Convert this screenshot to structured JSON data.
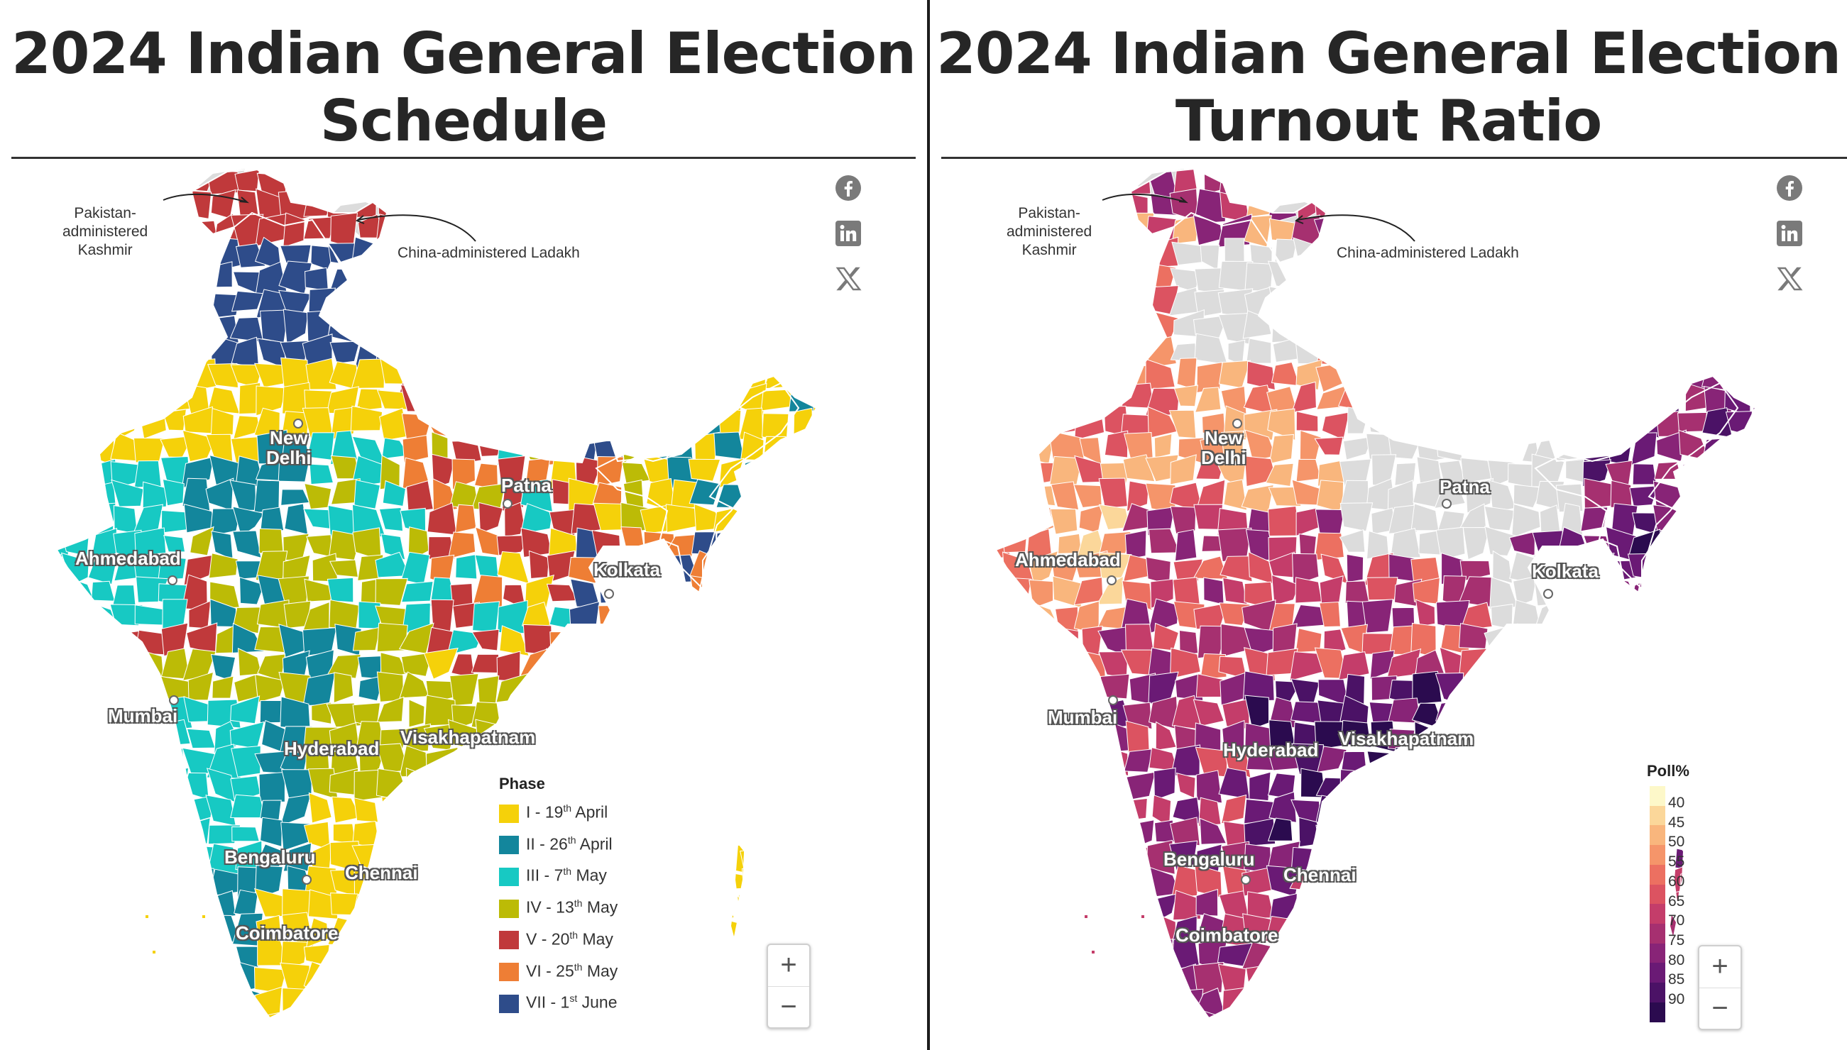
{
  "colors": {
    "phase": [
      "#f5d10a",
      "#13869c",
      "#17c9c3",
      "#bcbb06",
      "#c0393b",
      "#ee7e35",
      "#2e4c8a"
    ],
    "poll": [
      "#fdf8c9",
      "#fbd79a",
      "#f9b67d",
      "#f5956a",
      "#ec7061",
      "#dc5361",
      "#c43d6a",
      "#a63070",
      "#882477",
      "#6a1a75",
      "#4b1266",
      "#2b0b4f"
    ],
    "pak_china": "#dcdcdc"
  },
  "left": {
    "title_line1": "2024 Indian General Election",
    "title_line2": "Schedule",
    "annot_pak": [
      "Pakistan-",
      "administered",
      "Kashmir"
    ],
    "annot_china": "China-administered Ladakh",
    "cities": [
      "New",
      "Delhi",
      "Patna",
      "Ahmedabad",
      "Kolkata",
      "Mumbai",
      "Hyderabad",
      "Visakhapatnam",
      "Bengaluru",
      "Chennai",
      "Coimbatore"
    ],
    "legend_title": "Phase",
    "phases": [
      {
        "num": "I - 19",
        "sup": "th",
        "tail": " April"
      },
      {
        "num": "II - 26",
        "sup": "th",
        "tail": " April"
      },
      {
        "num": "III - 7",
        "sup": "th",
        "tail": " May"
      },
      {
        "num": "IV - 13",
        "sup": "th",
        "tail": " May"
      },
      {
        "num": "V - 20",
        "sup": "th",
        "tail": " May"
      },
      {
        "num": "VI - 25",
        "sup": "th",
        "tail": " May"
      },
      {
        "num": "VII - 1",
        "sup": "st",
        "tail": " June"
      }
    ],
    "zoom_in": "+",
    "zoom_out": "−"
  },
  "right": {
    "title_line1": "2024 Indian General Election",
    "title_line2": "Turnout Ratio",
    "annot_pak": [
      "Pakistan-",
      "administered",
      "Kashmir"
    ],
    "annot_china": "China-administered Ladakh",
    "cities": [
      "New",
      "Delhi",
      "Patna",
      "Ahmedabad",
      "Kolkata",
      "Mumbai",
      "Hyderabad",
      "Visakhapatnam",
      "Bengaluru",
      "Chennai",
      "Coimbatore"
    ],
    "legend_title": "Poll%",
    "ticks": [
      "40",
      "45",
      "50",
      "55",
      "60",
      "65",
      "70",
      "75",
      "80",
      "85",
      "90"
    ],
    "zoom_in": "+",
    "zoom_out": "−"
  }
}
